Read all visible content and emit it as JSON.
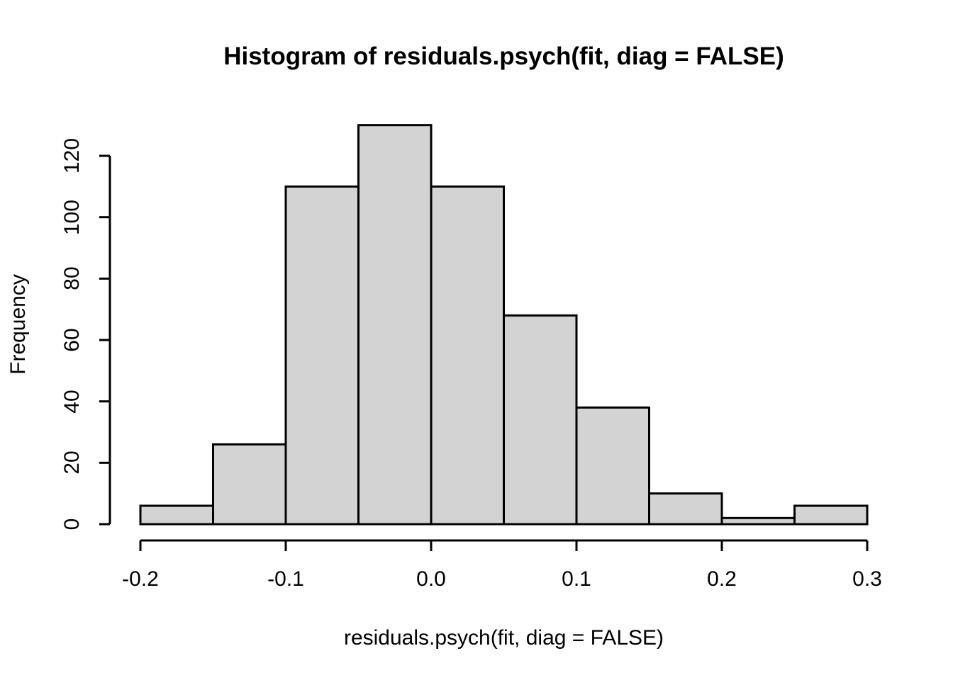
{
  "chart_data": {
    "type": "bar",
    "variant": "histogram",
    "title": "Histogram of residuals.psych(fit, diag = FALSE)",
    "xlabel": "residuals.psych(fit, diag = FALSE)",
    "ylabel": "Frequency",
    "bin_edges": [
      -0.2,
      -0.15,
      -0.1,
      -0.05,
      0.0,
      0.05,
      0.1,
      0.15,
      0.2,
      0.25,
      0.3
    ],
    "values": [
      6,
      26,
      110,
      130,
      110,
      68,
      38,
      10,
      2,
      6
    ],
    "x_tick_values": [
      -0.2,
      -0.1,
      0.0,
      0.1,
      0.2,
      0.3
    ],
    "x_tick_labels": [
      "-0.2",
      "-0.1",
      "0.0",
      "0.1",
      "0.2",
      "0.3"
    ],
    "y_tick_values": [
      0,
      20,
      40,
      60,
      80,
      100,
      120
    ],
    "y_tick_labels": [
      "0",
      "20",
      "40",
      "60",
      "80",
      "100",
      "120"
    ],
    "xlim": [
      -0.2,
      0.3
    ],
    "ylim": [
      0,
      130
    ],
    "grid": false,
    "legend": "none",
    "colors": {
      "bar_fill": "#d3d3d3",
      "bar_border": "#000000",
      "axis": "#000000",
      "text": "#000000",
      "background": "#ffffff"
    }
  }
}
